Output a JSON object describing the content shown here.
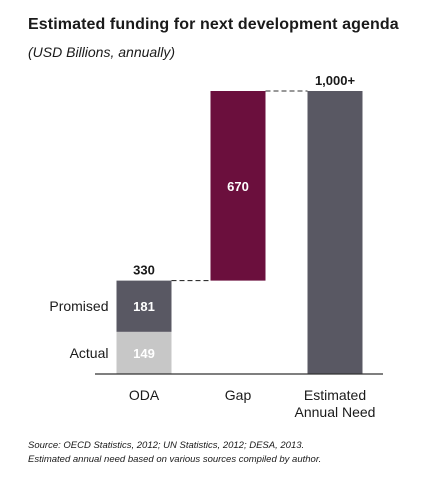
{
  "chart_data": {
    "type": "bar",
    "subtype": "waterfall",
    "title": "Estimated funding for next development agenda",
    "subtitle": "(USD Billions, annually)",
    "categories": [
      "ODA",
      "Gap",
      "Estimated Annual Need"
    ],
    "bars": [
      {
        "category": "ODA",
        "total_label": "330",
        "segments": [
          {
            "name": "Actual",
            "value": 149,
            "label": "149",
            "color": "#c7c7c7"
          },
          {
            "name": "Promised",
            "value": 181,
            "label": "181",
            "color": "#595863"
          }
        ]
      },
      {
        "category": "Gap",
        "segments": [
          {
            "value": 670,
            "base": 330,
            "label": "670",
            "color": "#6b0f3d"
          }
        ]
      },
      {
        "category": "Estimated Annual Need",
        "total_label": "1,000+",
        "segments": [
          {
            "value": 1000,
            "color": "#595863"
          }
        ]
      }
    ],
    "connectors": [
      "dashed"
    ],
    "axis": {
      "x_line": true,
      "y_axis": false,
      "grid": false
    },
    "ylim": [
      0,
      1000
    ]
  },
  "source": {
    "line1": "Source: OECD Statistics, 2012; UN Statistics, 2012; DESA, 2013.",
    "line2": "Estimated annual need based on various sources compiled by author."
  }
}
